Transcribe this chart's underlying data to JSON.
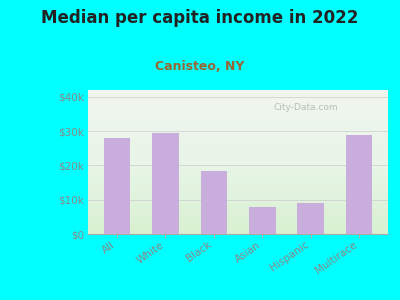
{
  "title": "Median per capita income in 2022",
  "subtitle": "Canisteo, NY",
  "categories": [
    "All",
    "White",
    "Black",
    "Asian",
    "Hispanic",
    "Multirace"
  ],
  "values": [
    28000,
    29500,
    18500,
    8000,
    9000,
    29000
  ],
  "bar_color": "#c9aedd",
  "background_outer": "#00ffff",
  "title_fontsize": 12,
  "title_color": "#222222",
  "subtitle_fontsize": 9,
  "subtitle_color": "#996633",
  "ylabel_color": "#888888",
  "xlabel_color": "#888888",
  "ylim": [
    0,
    42000
  ],
  "yticks": [
    0,
    10000,
    20000,
    30000,
    40000
  ],
  "ytick_labels": [
    "$0",
    "$10k",
    "$20k",
    "$30k",
    "$40k"
  ],
  "watermark": "City-Data.com"
}
